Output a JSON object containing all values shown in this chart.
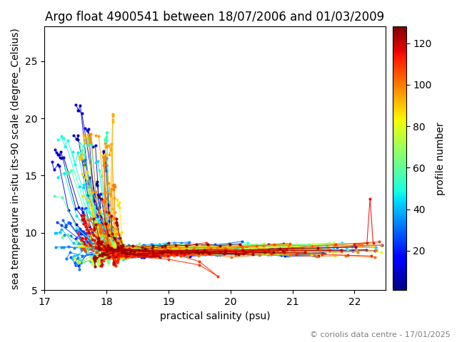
{
  "title": "Argo float 4900541 between 18/07/2006 and 01/03/2009",
  "xlabel": "practical salinity (psu)",
  "ylabel": "sea temperature in-situ its-90 scale (degree_Celsius)",
  "colorbar_label": "profile number",
  "copyright": "© coriolis data centre - 17/01/2025",
  "xlim": [
    17,
    22.5
  ],
  "ylim": [
    5,
    28
  ],
  "n_profiles": 128,
  "cmap": "jet",
  "title_fontsize": 12,
  "label_fontsize": 10,
  "tick_fontsize": 10,
  "colorbar_ticks": [
    20,
    40,
    60,
    80,
    100,
    120
  ],
  "seed": 7
}
